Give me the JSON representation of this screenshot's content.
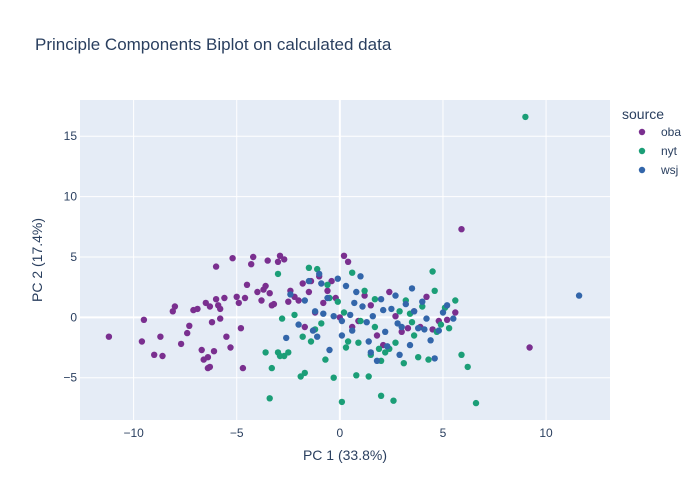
{
  "chart_data": {
    "type": "scatter",
    "title": "Principle Components Biplot on calculated data",
    "xlabel": "PC 1 (33.8%)",
    "ylabel": "PC 2 (17.4%)",
    "xlim": [
      -12.6,
      13.1
    ],
    "ylim": [
      -8.5,
      18.0
    ],
    "xticks": [
      -10,
      -5,
      0,
      5,
      10
    ],
    "yticks": [
      -5,
      0,
      5,
      10,
      15
    ],
    "xtick_labels": [
      "−10",
      "−5",
      "0",
      "5",
      "10"
    ],
    "ytick_labels": [
      "−5",
      "0",
      "5",
      "10",
      "15"
    ],
    "grid": true,
    "legend_title": "source",
    "legend_position": "right",
    "plot_bg": "#e5ecf6",
    "series": [
      {
        "name": "oba",
        "color": "#7a2f8f",
        "x": [
          -11.2,
          -9.6,
          -9.5,
          -9.0,
          -8.7,
          -8.6,
          -8.1,
          -8.0,
          -7.7,
          -7.4,
          -7.3,
          -7.1,
          -6.9,
          -6.7,
          -6.6,
          -6.5,
          -6.4,
          -6.4,
          -6.3,
          -6.2,
          -6.1,
          -6.0,
          -5.9,
          -5.8,
          -5.8,
          -5.6,
          -5.5,
          -5.3,
          -5.2,
          -5.0,
          -4.9,
          -4.8,
          -4.6,
          -4.5,
          -4.3,
          -4.2,
          -4.0,
          -3.8,
          -3.7,
          -3.6,
          -3.5,
          -3.4,
          -3.3,
          -3.2,
          -3.0,
          -2.9,
          -2.7,
          -2.5,
          -2.4,
          -2.2,
          -2.0,
          -1.8,
          -1.7,
          -1.5,
          -1.4,
          -1.2,
          -1.0,
          -0.8,
          -0.6,
          -0.4,
          -0.2,
          0.0,
          0.2,
          0.4,
          0.6,
          0.9,
          1.2,
          1.5,
          1.8,
          2.1,
          2.4,
          2.7,
          3.0,
          3.3,
          3.6,
          3.9,
          4.2,
          4.5,
          4.8,
          5.2,
          5.6,
          5.9,
          9.2,
          -6.3,
          -6.0,
          -4.7
        ],
        "y": [
          -1.6,
          -2.0,
          -0.2,
          -3.1,
          -1.6,
          -3.2,
          0.5,
          0.9,
          -2.2,
          -1.3,
          -0.7,
          0.6,
          0.7,
          -2.7,
          -3.5,
          1.2,
          -3.3,
          -4.2,
          0.9,
          -0.4,
          -2.8,
          1.5,
          1.0,
          -0.1,
          0.7,
          1.6,
          -1.6,
          -2.5,
          4.9,
          1.7,
          1.2,
          -0.9,
          1.6,
          2.7,
          4.4,
          5.0,
          2.1,
          1.4,
          2.3,
          2.6,
          4.7,
          2.0,
          1.0,
          1.1,
          4.6,
          5.1,
          4.8,
          1.3,
          2.2,
          1.7,
          1.4,
          2.8,
          -0.8,
          2.1,
          3.0,
          0.4,
          3.4,
          1.2,
          2.2,
          3.0,
          1.6,
          0.0,
          5.1,
          4.6,
          -0.8,
          -0.3,
          1.8,
          1.0,
          -1.5,
          -2.3,
          2.1,
          0.1,
          -1.2,
          -0.9,
          0.5,
          -0.8,
          1.7,
          -1.0,
          -0.3,
          -0.2,
          0.4,
          7.3,
          -2.5,
          -4.1,
          4.2,
          -4.2
        ]
      },
      {
        "name": "nyt",
        "color": "#1b9e77",
        "x": [
          -3.4,
          -3.3,
          -3.0,
          -3.0,
          -2.9,
          -2.8,
          -2.7,
          -2.5,
          -2.2,
          -1.9,
          -1.7,
          -1.5,
          -1.4,
          -1.2,
          -1.1,
          -0.9,
          -0.7,
          -0.5,
          -0.3,
          -0.1,
          0.1,
          0.2,
          0.4,
          0.6,
          0.8,
          1.0,
          1.2,
          1.4,
          1.5,
          1.7,
          1.9,
          2.0,
          2.2,
          2.4,
          2.6,
          2.7,
          2.9,
          3.1,
          3.2,
          3.4,
          3.6,
          3.8,
          4.0,
          4.3,
          4.5,
          4.7,
          4.9,
          5.1,
          5.3,
          5.6,
          5.9,
          6.2,
          6.6,
          9.0,
          -1.8,
          -0.6,
          0.9,
          2.0,
          3.5,
          4.6,
          1.7,
          0.3,
          -3.6
        ],
        "y": [
          -6.7,
          -4.2,
          -2.9,
          3.6,
          -3.2,
          -0.1,
          -3.2,
          -2.9,
          0.2,
          -4.9,
          -4.6,
          4.1,
          -2.0,
          -1.0,
          4.0,
          -0.5,
          -3.5,
          1.6,
          -5.0,
          1.3,
          -7.0,
          0.4,
          -2.0,
          3.7,
          -4.8,
          -0.3,
          2.2,
          -4.9,
          -3.1,
          1.5,
          -2.6,
          -3.6,
          -2.9,
          -2.6,
          -6.9,
          -2.1,
          0.5,
          -3.8,
          1.4,
          0.3,
          -1.5,
          -3.3,
          0.9,
          -3.5,
          3.8,
          -1.2,
          -0.6,
          0.8,
          -0.9,
          1.4,
          -3.1,
          -4.1,
          -7.1,
          16.6,
          -1.6,
          2.7,
          -2.1,
          -6.5,
          -0.4,
          2.2,
          -0.8,
          -2.5,
          -2.9
        ]
      },
      {
        "name": "wsj",
        "color": "#3366aa",
        "x": [
          -2.6,
          -2.4,
          -2.0,
          -1.7,
          -1.5,
          -1.3,
          -1.1,
          -1.0,
          -0.8,
          -0.6,
          -0.5,
          -0.3,
          -0.1,
          0.1,
          0.3,
          0.5,
          0.6,
          0.8,
          1.0,
          1.1,
          1.3,
          1.5,
          1.6,
          1.8,
          2.0,
          2.2,
          2.3,
          2.5,
          2.7,
          2.9,
          3.0,
          3.2,
          3.4,
          3.6,
          3.8,
          4.0,
          4.2,
          4.4,
          4.6,
          4.8,
          5.0,
          5.2,
          5.5,
          11.6,
          -0.9,
          0.1,
          0.7,
          1.4,
          2.1,
          2.8,
          3.5,
          4.1,
          -1.2
        ],
        "y": [
          -1.7,
          1.9,
          -0.6,
          1.4,
          3.0,
          -1.1,
          -1.6,
          3.6,
          0.3,
          1.6,
          -2.7,
          0.1,
          3.2,
          -1.5,
          2.6,
          0.2,
          -1.1,
          2.1,
          3.4,
          0.9,
          -0.4,
          -2.9,
          0.1,
          -3.6,
          1.5,
          -1.2,
          -2.4,
          0.7,
          1.8,
          -3.1,
          -0.8,
          1.1,
          -2.3,
          0.5,
          -0.9,
          1.3,
          -0.1,
          -1.9,
          -3.4,
          -1.1,
          0.4,
          1.0,
          -0.1,
          1.8,
          2.8,
          -0.3,
          1.2,
          -2.0,
          0.6,
          -0.5,
          2.4,
          -1.0,
          0.5
        ]
      }
    ]
  }
}
